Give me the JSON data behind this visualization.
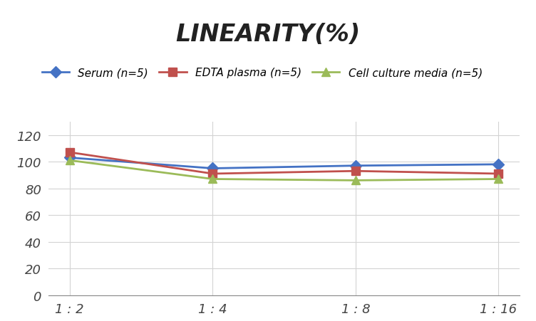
{
  "title": "LINEARITY(%)",
  "x_labels": [
    "1 : 2",
    "1 : 4",
    "1 : 8",
    "1 : 16"
  ],
  "x_positions": [
    0,
    1,
    2,
    3
  ],
  "series": [
    {
      "label": "Serum (n=5)",
      "color": "#4472C4",
      "marker": "D",
      "values": [
        103,
        95,
        97,
        98
      ]
    },
    {
      "label": "EDTA plasma (n=5)",
      "color": "#C0504D",
      "marker": "s",
      "values": [
        107,
        91,
        93,
        91
      ]
    },
    {
      "label": "Cell culture media (n=5)",
      "color": "#9BBB59",
      "marker": "^",
      "values": [
        101,
        87,
        86,
        87
      ]
    }
  ],
  "ylim": [
    0,
    130
  ],
  "yticks": [
    0,
    20,
    40,
    60,
    80,
    100,
    120
  ],
  "background_color": "#FFFFFF",
  "grid_color": "#D3D3D3",
  "title_fontsize": 24,
  "legend_fontsize": 11,
  "tick_fontsize": 13
}
